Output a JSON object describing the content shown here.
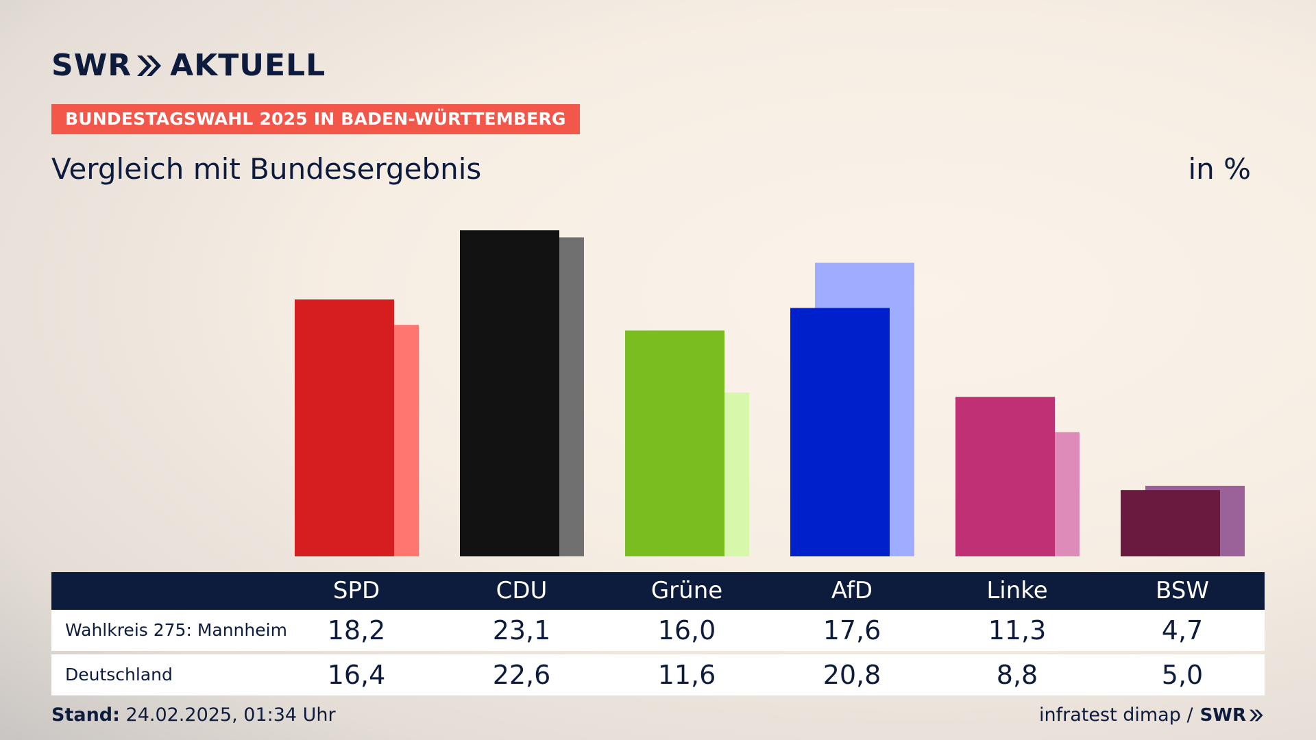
{
  "brand": {
    "swr": "SWR",
    "aktuell": "AKTUELL"
  },
  "banner": "BUNDESTAGSWAHL 2025 IN BADEN-WÜRTTEMBERG",
  "subtitle": "Vergleich mit Bundesergebnis",
  "unit": "in %",
  "chart_data": {
    "type": "bar",
    "title": "Vergleich mit Bundesergebnis",
    "ylabel": "in %",
    "categories": [
      "SPD",
      "CDU",
      "Grüne",
      "AfD",
      "Linke",
      "BSW"
    ],
    "series": [
      {
        "name": "Wahlkreis 275: Mannheim",
        "values": [
          18.2,
          23.1,
          16.0,
          17.6,
          11.3,
          4.7
        ],
        "colors": [
          "#d61e20",
          "#121212",
          "#79bd1e",
          "#0020cc",
          "#bf3075",
          "#6a193f"
        ]
      },
      {
        "name": "Deutschland",
        "values": [
          16.4,
          22.6,
          11.6,
          20.8,
          8.8,
          5.0
        ],
        "colors": [
          "#ff7570",
          "#717070",
          "#d7f7aa",
          "#9eadff",
          "#df8bba",
          "#9b6199"
        ]
      }
    ],
    "ylim": [
      0,
      25
    ]
  },
  "table": {
    "rows": [
      {
        "label": "Wahlkreis 275: Mannheim",
        "values": [
          "18,2",
          "23,1",
          "16,0",
          "17,6",
          "11,3",
          "4,7"
        ]
      },
      {
        "label": "Deutschland",
        "values": [
          "16,4",
          "22,6",
          "11,6",
          "20,8",
          "8,8",
          "5,0"
        ]
      }
    ]
  },
  "footer": {
    "stand_label": "Stand:",
    "stand_value": "24.02.2025, 01:34 Uhr",
    "source": "infratest dimap /",
    "source_brand": "SWR"
  }
}
